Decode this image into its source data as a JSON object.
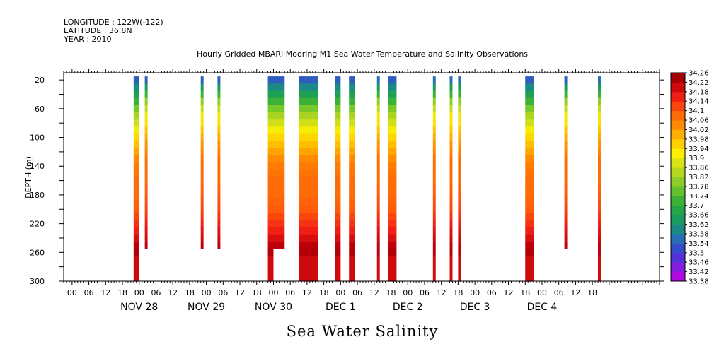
{
  "header": {
    "longitude": "LONGITUDE : 122W(-122)",
    "latitude": "LATITUDE : 36.8N",
    "year": "YEAR : 2010"
  },
  "chart_data": {
    "type": "heatmap",
    "title": "Hourly Gridded MBARI Mooring M1 Sea Water Temperature and Salinity Observations",
    "xlabel": "Sea Water Salinity",
    "ylabel": "DEPTH (m)",
    "ylim": [
      300,
      10
    ],
    "xlim_hours": [
      -15,
      198
    ],
    "y_ticks": [
      20,
      60,
      100,
      140,
      180,
      220,
      260,
      300
    ],
    "x_hour_ticks": [
      "00",
      "06",
      "12",
      "18",
      "00",
      "06",
      "12",
      "18",
      "00",
      "06",
      "12",
      "18",
      "00",
      "06",
      "12",
      "18",
      "00",
      "06",
      "12",
      "18",
      "00",
      "06",
      "12",
      "18",
      "00",
      "06",
      "12",
      "18",
      "00",
      "06",
      "12",
      "18"
    ],
    "date_labels": [
      "NOV 28",
      "NOV 29",
      "NOV 30",
      "DEC  1",
      "DEC  2",
      "DEC  3",
      "DEC  4"
    ],
    "colorbar": {
      "values": [
        33.38,
        33.42,
        33.46,
        33.5,
        33.54,
        33.58,
        33.62,
        33.66,
        33.7,
        33.74,
        33.78,
        33.82,
        33.86,
        33.9,
        33.94,
        33.98,
        34.02,
        34.06,
        34.1,
        34.14,
        34.18,
        34.22,
        34.26
      ],
      "labels": [
        "33.38",
        "33.42",
        "33.46",
        "33.5",
        "33.54",
        "33.58",
        "33.62",
        "33.66",
        "33.7",
        "33.74",
        "33.78",
        "33.82",
        "33.86",
        "33.9",
        "33.94",
        "33.98",
        "34.02",
        "34.06",
        "34.1",
        "34.14",
        "34.18",
        "34.22",
        "34.26"
      ]
    },
    "depths": [
      20,
      30,
      40,
      50,
      60,
      70,
      80,
      90,
      100,
      110,
      120,
      130,
      140,
      150,
      160,
      170,
      180,
      190,
      200,
      210,
      220,
      230,
      240,
      250,
      260,
      270,
      280,
      290,
      300
    ],
    "profile": {
      "deep": [
        33.54,
        33.6,
        33.66,
        33.72,
        33.78,
        33.83,
        33.87,
        33.91,
        33.95,
        33.98,
        34.01,
        34.04,
        34.06,
        34.07,
        34.08,
        34.08,
        34.08,
        34.09,
        34.1,
        34.12,
        34.14,
        34.16,
        34.19,
        34.22,
        34.23,
        34.2,
        34.2,
        34.2,
        34.2
      ],
      "mid": [
        33.54,
        33.6,
        33.66,
        33.72,
        33.78,
        33.83,
        33.87,
        33.91,
        33.95,
        33.98,
        34.01,
        34.04,
        34.06,
        34.07,
        34.08,
        34.08,
        34.08,
        34.09,
        34.1,
        34.12,
        34.14,
        34.16,
        34.19,
        34.22
      ],
      "thin_deep": [
        33.56,
        33.64,
        33.72,
        33.8,
        33.86,
        33.9,
        33.94,
        33.97,
        34.0,
        34.03,
        34.05,
        34.07,
        34.08,
        34.08,
        34.08,
        34.09,
        34.1,
        34.11,
        34.12,
        34.14,
        34.16,
        34.18,
        34.2,
        34.22,
        34.22,
        34.2,
        34.2,
        34.2,
        34.2
      ],
      "thin_mid": [
        33.54,
        33.64,
        33.72,
        33.8,
        33.86,
        33.9,
        33.94,
        33.97,
        34.0,
        34.03,
        34.05,
        34.07,
        34.08,
        34.08,
        34.08,
        34.09,
        34.1,
        34.11,
        34.12,
        34.14,
        34.16,
        34.18,
        34.2,
        34.22
      ]
    },
    "observation_blocks": [
      {
        "start_hour": 10,
        "end_hour": 12,
        "profile": "deep"
      },
      {
        "start_hour": 14,
        "end_hour": 15,
        "profile": "thin_mid"
      },
      {
        "start_hour": 34,
        "end_hour": 35,
        "profile": "thin_mid"
      },
      {
        "start_hour": 40,
        "end_hour": 41,
        "profile": "thin_mid"
      },
      {
        "start_hour": 58,
        "end_hour": 60,
        "profile": "deep"
      },
      {
        "start_hour": 60,
        "end_hour": 64,
        "profile": "mid"
      },
      {
        "start_hour": 69,
        "end_hour": 76,
        "profile": "deep"
      },
      {
        "start_hour": 82,
        "end_hour": 84,
        "profile": "deep"
      },
      {
        "start_hour": 87,
        "end_hour": 89,
        "profile": "deep"
      },
      {
        "start_hour": 97,
        "end_hour": 98,
        "profile": "thin_deep"
      },
      {
        "start_hour": 101,
        "end_hour": 104,
        "profile": "deep"
      },
      {
        "start_hour": 117,
        "end_hour": 118,
        "profile": "thin_deep"
      },
      {
        "start_hour": 123,
        "end_hour": 124,
        "profile": "thin_deep"
      },
      {
        "start_hour": 126,
        "end_hour": 127,
        "profile": "thin_deep"
      },
      {
        "start_hour": 150,
        "end_hour": 153,
        "profile": "deep"
      },
      {
        "start_hour": 164,
        "end_hour": 165,
        "profile": "thin_mid"
      },
      {
        "start_hour": 176,
        "end_hour": 177,
        "profile": "thin_deep"
      }
    ]
  }
}
